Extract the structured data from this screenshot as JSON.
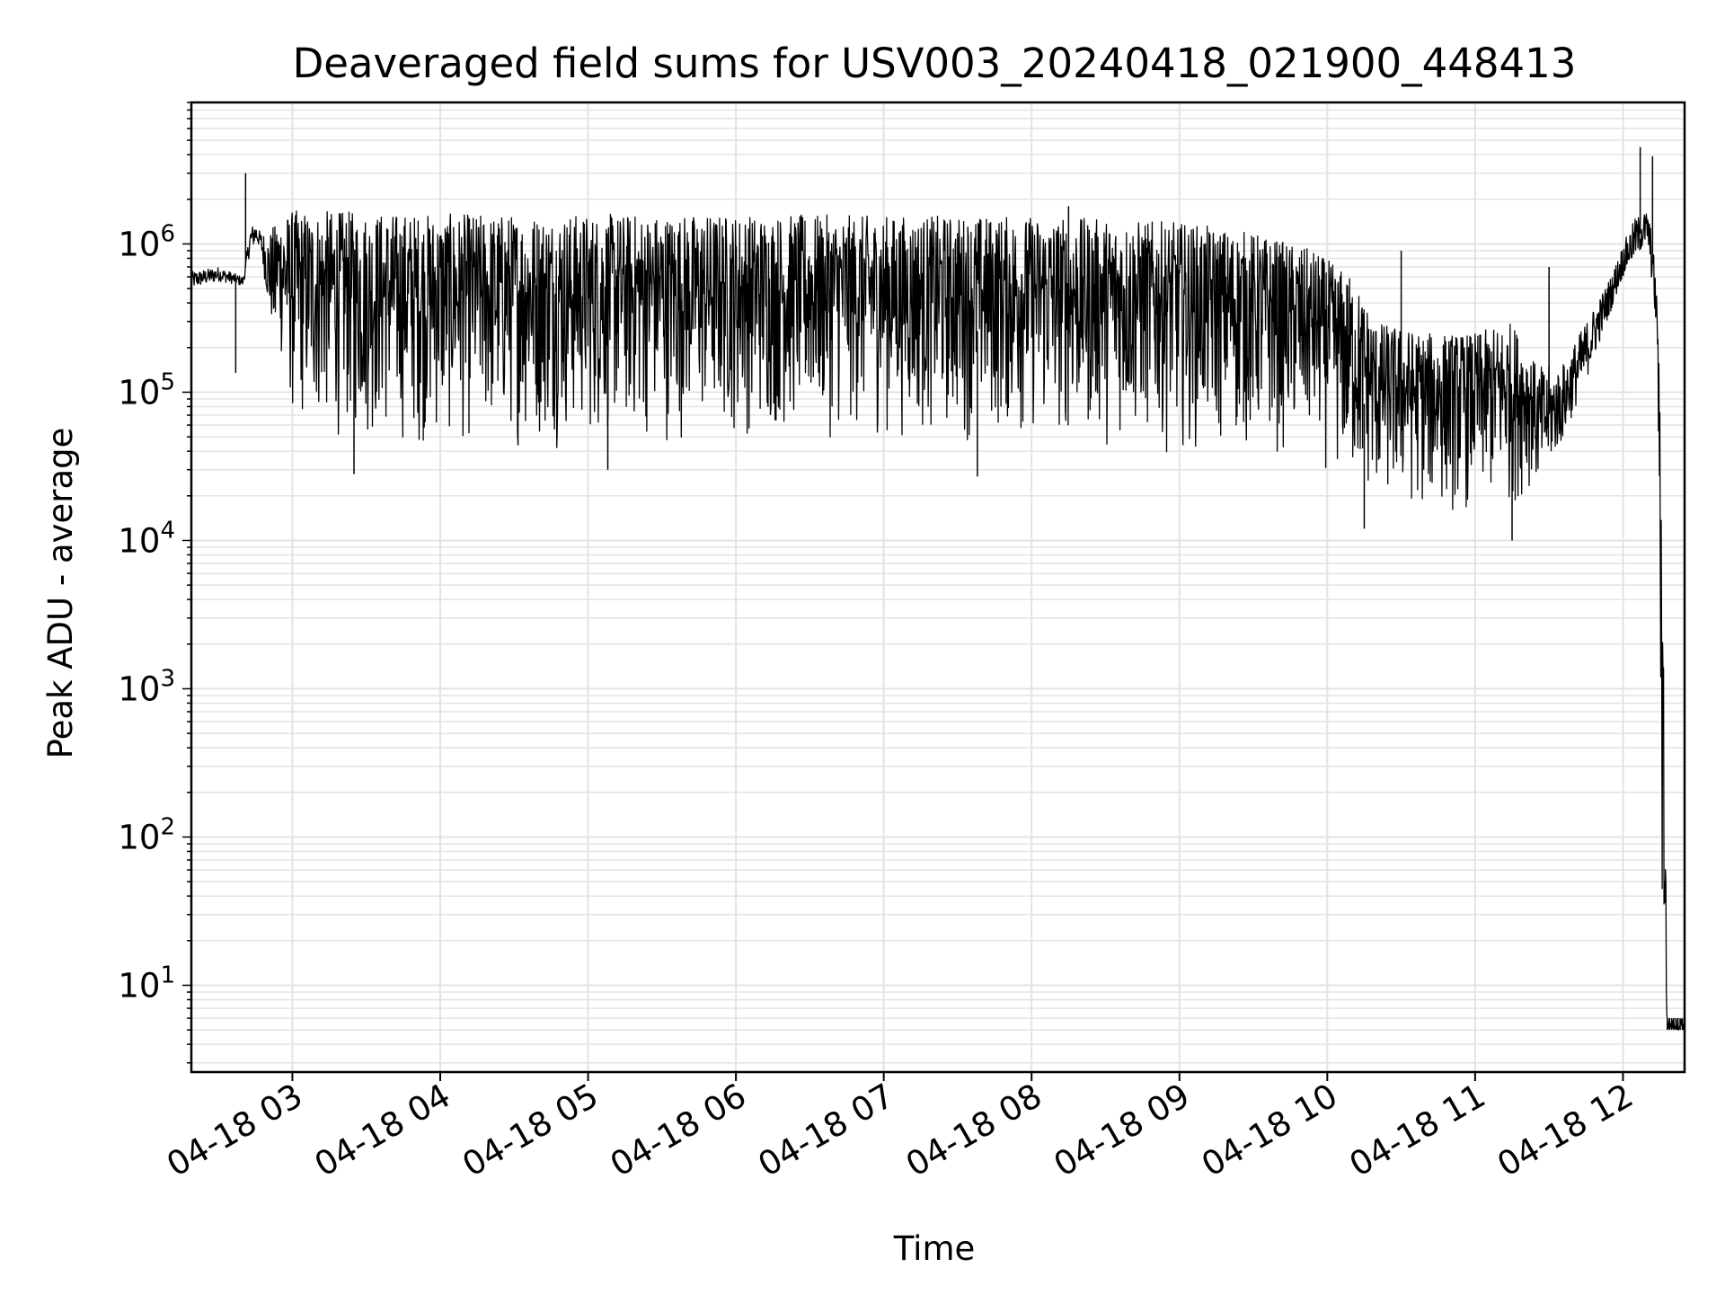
{
  "chart_data": {
    "type": "line",
    "title": "Deaveraged field sums for USV003_20240418_021900_448413",
    "xlabel": "Time",
    "ylabel": "Peak ADU - average",
    "yscale": "log",
    "grid": true,
    "legend": "none",
    "line_color": "#000000",
    "grid_color": "#e3e3e3",
    "x_tick_labels": [
      "04-18 03",
      "04-18 04",
      "04-18 05",
      "04-18 06",
      "04-18 07",
      "04-18 08",
      "04-18 09",
      "04-18 10",
      "04-18 11",
      "04-18 12"
    ],
    "y_tick_labels": [
      {
        "base": "10",
        "exp": "1"
      },
      {
        "base": "10",
        "exp": "2"
      },
      {
        "base": "10",
        "exp": "3"
      },
      {
        "base": "10",
        "exp": "4"
      },
      {
        "base": "10",
        "exp": "5"
      },
      {
        "base": "10",
        "exp": "6"
      }
    ],
    "xlim": [
      "2024-04-18 02:19",
      "2024-04-18 12:25"
    ],
    "ylim": [
      2.6,
      9000000
    ],
    "series": [
      {
        "points": [
          [
            "2024-04-18 02:19",
            500000,
            650000
          ],
          [
            "2024-04-18 02:30",
            560000,
            700000
          ],
          [
            "2024-04-18 02:40",
            520000,
            600000
          ],
          [
            "2024-04-18 02:43",
            900000,
            1300000
          ],
          [
            "2024-04-18 02:45",
            1000000,
            1400000
          ],
          [
            "2024-04-18 02:47",
            950000,
            1200000
          ],
          [
            "2024-04-18 02:50",
            400000,
            1200000
          ],
          [
            "2024-04-18 02:55",
            150000,
            1500000
          ],
          [
            "2024-04-18 03:00",
            50000,
            1700000
          ],
          [
            "2024-04-18 03:30",
            40000,
            1650000
          ],
          [
            "2024-04-18 04:00",
            38000,
            1600000
          ],
          [
            "2024-04-18 05:00",
            40000,
            1600000
          ],
          [
            "2024-04-18 06:00",
            45000,
            1600000
          ],
          [
            "2024-04-18 07:00",
            45000,
            1550000
          ],
          [
            "2024-04-18 08:00",
            42000,
            1550000
          ],
          [
            "2024-04-18 09:00",
            38000,
            1400000
          ],
          [
            "2024-04-18 09:30",
            35000,
            1200000
          ],
          [
            "2024-04-18 09:55",
            32000,
            900000
          ],
          [
            "2024-04-18 10:10",
            18000,
            600000
          ],
          [
            "2024-04-18 10:20",
            15000,
            300000
          ],
          [
            "2024-04-18 10:40",
            14000,
            250000
          ],
          [
            "2024-04-18 11:00",
            14000,
            250000
          ],
          [
            "2024-04-18 11:15",
            15000,
            300000
          ],
          [
            "2024-04-18 11:25",
            25000,
            150000
          ],
          [
            "2024-04-18 11:35",
            45000,
            150000
          ],
          [
            "2024-04-18 11:45",
            120000,
            300000
          ],
          [
            "2024-04-18 11:55",
            350000,
            600000
          ],
          [
            "2024-04-18 12:00",
            600000,
            1000000
          ],
          [
            "2024-04-18 12:05",
            800000,
            1500000
          ],
          [
            "2024-04-18 12:10",
            1000000,
            1700000
          ],
          [
            "2024-04-18 12:12",
            500000,
            1100000
          ],
          [
            "2024-04-18 12:14",
            200000,
            400000
          ],
          [
            "2024-04-18 12:16",
            5,
            20000
          ],
          [
            "2024-04-18 12:18",
            5,
            6
          ],
          [
            "2024-04-18 12:25",
            5,
            6
          ]
        ],
        "spikes": [
          [
            "2024-04-18 02:37",
            135000
          ],
          [
            "2024-04-18 02:41",
            3000000
          ],
          [
            "2024-04-18 03:25",
            28000
          ],
          [
            "2024-04-18 05:08",
            30000
          ],
          [
            "2024-04-18 07:38",
            27000
          ],
          [
            "2024-04-18 08:15",
            1800000
          ],
          [
            "2024-04-18 09:10",
            1000000
          ],
          [
            "2024-04-18 10:15",
            12000
          ],
          [
            "2024-04-18 10:30",
            900000
          ],
          [
            "2024-04-18 11:15",
            10000
          ],
          [
            "2024-04-18 11:30",
            700000
          ],
          [
            "2024-04-18 12:07",
            4500000
          ],
          [
            "2024-04-18 12:12",
            3900000
          ]
        ]
      }
    ]
  }
}
